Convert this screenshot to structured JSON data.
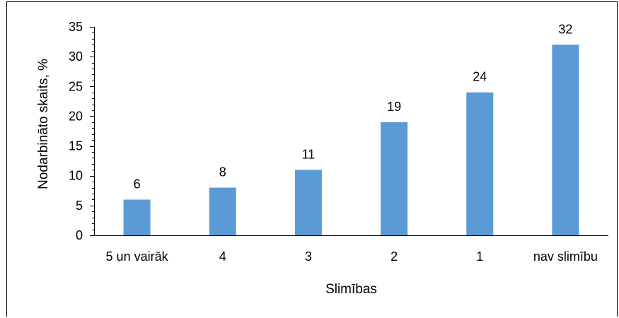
{
  "chart_data": {
    "type": "bar",
    "categories": [
      "5 un vairāk",
      "4",
      "3",
      "2",
      "1",
      "nav slimību"
    ],
    "values": [
      6,
      8,
      11,
      19,
      24,
      32
    ],
    "data_labels": [
      "6",
      "8",
      "11",
      "19",
      "24",
      "32"
    ],
    "title": "",
    "xlabel": "Slimības",
    "ylabel": "Nodarbināto skaits, %",
    "ylim": [
      0,
      35
    ],
    "yticks": [
      0,
      5,
      10,
      15,
      20,
      25,
      30,
      35
    ],
    "ytick_labels": [
      "0",
      "5",
      "10",
      "15",
      "20",
      "25",
      "30",
      "35"
    ],
    "grid": false,
    "legend": "none",
    "bar_color": "#5B9BD5"
  }
}
